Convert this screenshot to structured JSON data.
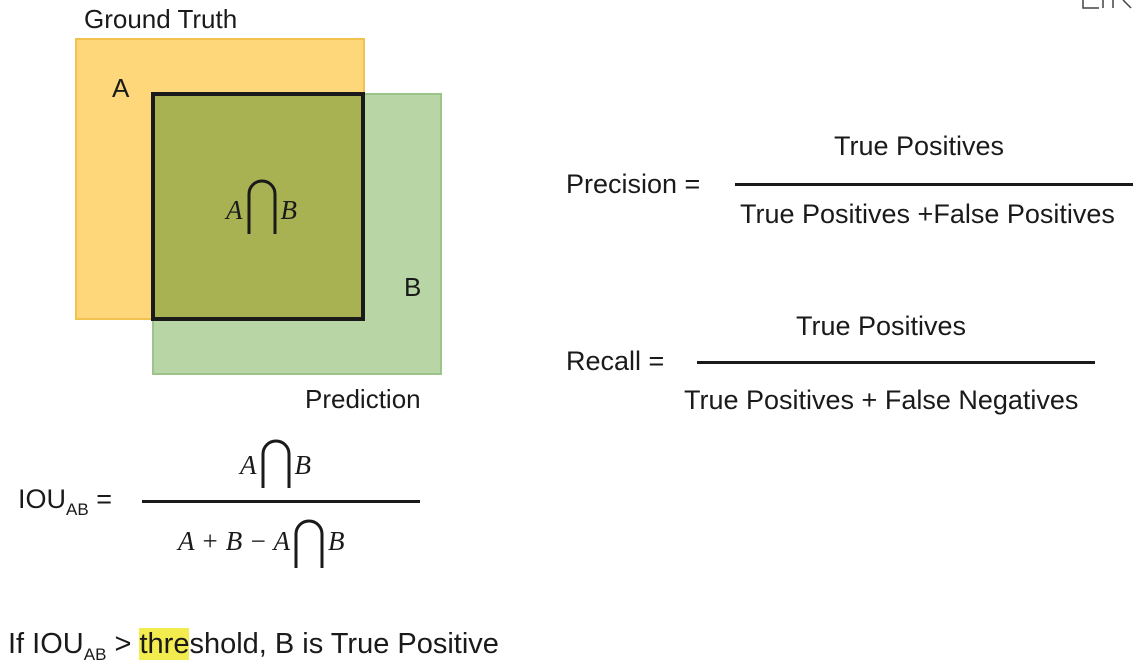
{
  "diagram": {
    "ground_truth_label": "Ground Truth",
    "prediction_label": "Prediction",
    "box_a_label": "A",
    "box_b_label": "B",
    "intersection": {
      "left": "A",
      "right": "B"
    },
    "colors": {
      "ground_truth_fill": "#fdd77a",
      "ground_truth_border": "#f1c24e",
      "prediction_fill": "#b8d5a5",
      "prediction_border": "#9cc388",
      "overlap_fill": "#a8b253",
      "overlap_border": "#1a1a1a"
    }
  },
  "precision": {
    "label": "Precision =",
    "numerator": "True Positives",
    "denominator": "True Positives +False Positives"
  },
  "recall": {
    "label": "Recall =",
    "numerator": "True Positives",
    "denominator": "True Positives + False Negatives"
  },
  "iou": {
    "label": "IOU",
    "label_sub": "AB",
    "equals": "=",
    "num_left": "A",
    "num_right": "B",
    "den_expr": "A + B − A",
    "den_right": "B"
  },
  "rule_text": {
    "prefix": "If IOU",
    "sub": "AB",
    "gt": " > ",
    "highlighted": "thre",
    "rest": "shold, B is True Positive"
  }
}
